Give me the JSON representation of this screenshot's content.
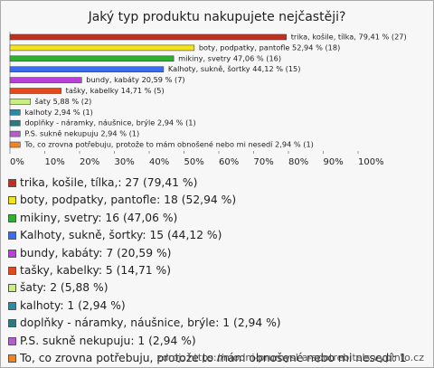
{
  "chart_data": {
    "type": "bar",
    "orientation": "horizontal",
    "title": "Jaký typ produktu nakupujete nejčastěji?",
    "values": [
      79.41,
      52.94,
      47.06,
      44.12,
      20.59,
      14.71,
      5.88,
      2.94,
      2.94,
      2.94,
      2.94
    ],
    "value_labels": [
      "trika, košile, tílka, 79,41 % (27)",
      "boty, podpatky, pantofle 52,94 % (18)",
      "mikiny, svetry 47,06 % (16)",
      "Kalhoty, sukně, šortky 44,12 % (15)",
      "bundy, kabáty 20,59 % (7)",
      "tašky, kabelky 14,71 % (5)",
      "šaty 5,88 % (2)",
      "kalhoty 2,94 % (1)",
      "doplňky - náramky, náušnice, brýle 2,94 % (1)",
      "P.S. sukně nekupuju 2,94 % (1)",
      "To, co zrovna potřebuju, protože to mám obnošené nebo mi nesedí 2,94 % (1)"
    ],
    "legend_labels": [
      "trika, košile, tílka,: 27 (79,41 %)",
      "boty, podpatky, pantofle: 18 (52,94 %)",
      "mikiny, svetry: 16 (47,06 %)",
      "Kalhoty, sukně, šortky: 15 (44,12 %)",
      "bundy, kabáty: 7 (20,59 %)",
      "tašky, kabelky: 5 (14,71 %)",
      "šaty: 2 (5,88 %)",
      "kalhoty: 1 (2,94 %)",
      "doplňky - náramky, náušnice, brýle: 1 (2,94 %)",
      "P.S. sukně nekupuju: 1 (2,94 %)",
      "To, co zrovna potřebuju, protože to mám obnošené nebo mi nesedí: 1 (2,94 %)"
    ],
    "colors": [
      "#c0301c",
      "#f2e41c",
      "#30b030",
      "#3a6cf0",
      "#b840d8",
      "#e04a1c",
      "#c8f080",
      "#2a8aa8",
      "#2a7a80",
      "#b060c8",
      "#f08420"
    ],
    "xlim": [
      0,
      100
    ],
    "xticks": [
      {
        "value": 0,
        "label": "0%"
      },
      {
        "value": 10,
        "label": "10%"
      },
      {
        "value": 20,
        "label": "20%"
      },
      {
        "value": 30,
        "label": "30%"
      },
      {
        "value": 40,
        "label": "40%"
      },
      {
        "value": 50,
        "label": "50%"
      },
      {
        "value": 60,
        "label": "60%"
      },
      {
        "value": 70,
        "label": "70%"
      },
      {
        "value": 80,
        "label": "80%"
      },
      {
        "value": 90,
        "label": "90%"
      },
      {
        "value": 100,
        "label": "100%"
      }
    ],
    "source": "zdroj: https://modni-prumysl-a-spotrebitels.vyplnto.cz"
  }
}
